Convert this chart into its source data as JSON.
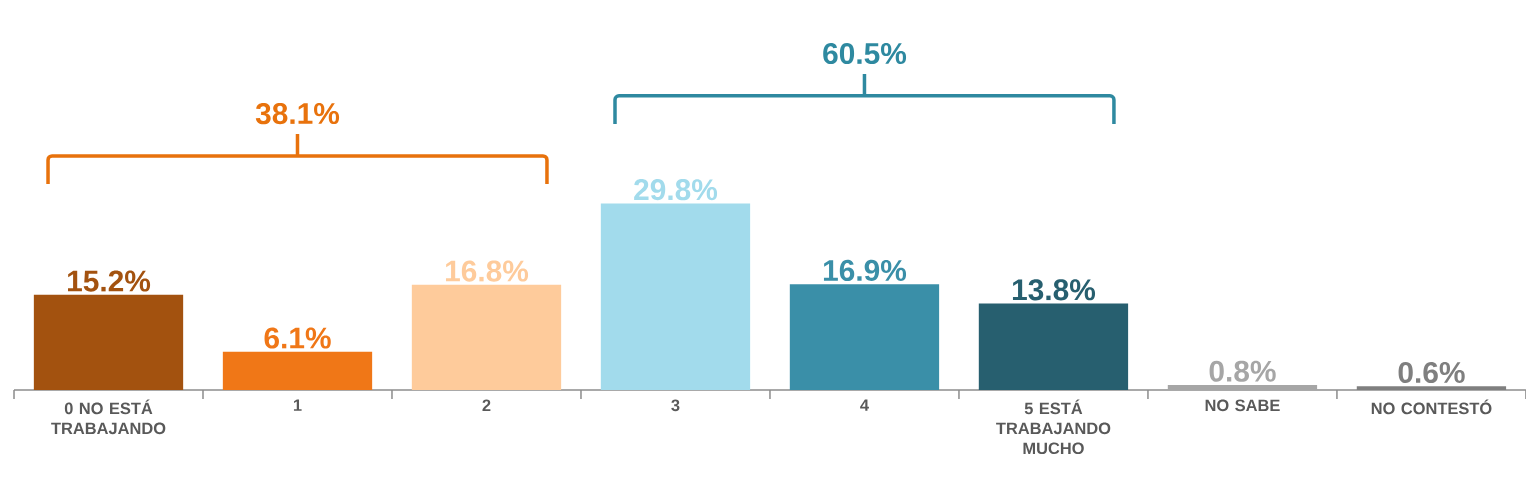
{
  "chart_data": {
    "type": "bar",
    "categories": [
      "0 NO ESTÁ TRABAJANDO",
      "1",
      "2",
      "3",
      "4",
      "5 ESTÁ TRABAJANDO MUCHO",
      "NO SABE",
      "NO CONTESTÓ"
    ],
    "values": [
      15.2,
      6.1,
      16.8,
      29.8,
      16.9,
      13.8,
      0.8,
      0.6
    ],
    "colors": [
      "#a3520f",
      "#f07717",
      "#fecb9b",
      "#a2dbec",
      "#3a8fa8",
      "#275f6f",
      "#a6a6a6",
      "#7f7f7f"
    ],
    "value_labels": [
      "15.2%",
      "6.1%",
      "16.8%",
      "29.8%",
      "16.9%",
      "13.8%",
      "0.8%",
      "0.6%"
    ],
    "annotations": [
      "38.1%",
      "60.5%"
    ],
    "grid": false
  }
}
